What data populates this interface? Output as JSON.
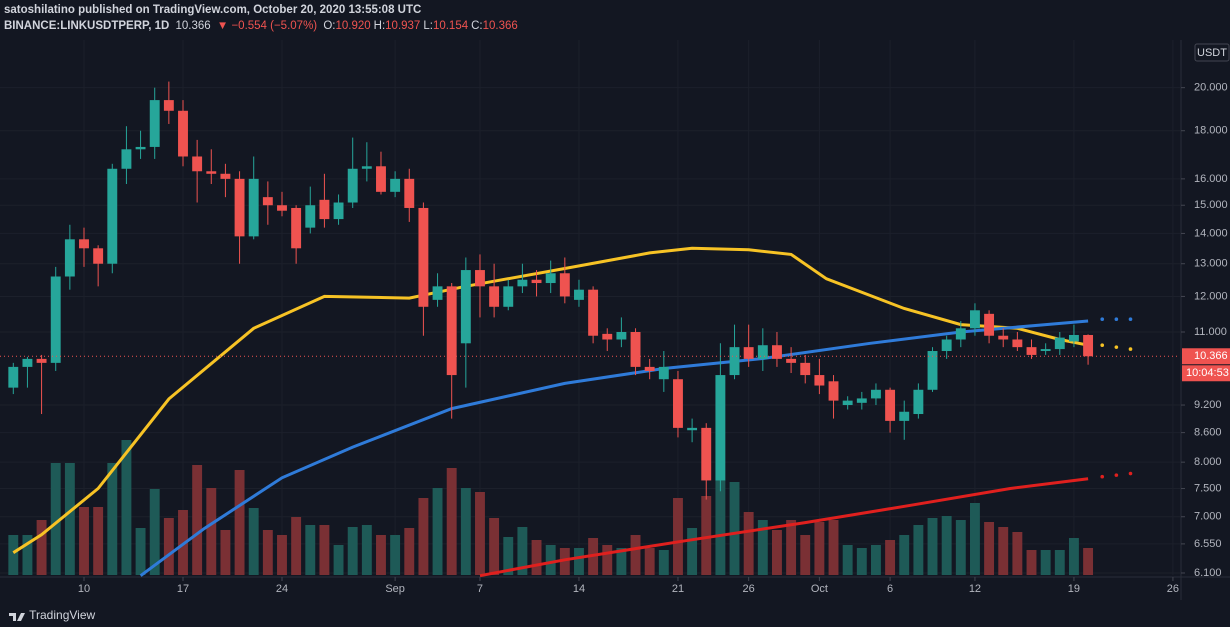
{
  "header": {
    "publisher": "satoshilatino published on TradingView.com, October 20, 2020 13:55:08 UTC",
    "symbol": "BINANCE:LINKUSDTPERP, 1D",
    "price": "10.366",
    "change": "▼ −0.554 (−5.07%)",
    "ohlc": [
      {
        "label": "O:",
        "value": "10.920"
      },
      {
        "label": "H:",
        "value": "10.937"
      },
      {
        "label": "L:",
        "value": "10.154"
      },
      {
        "label": "C:",
        "value": "10.366"
      }
    ]
  },
  "footer": {
    "logo": "TradingView"
  },
  "chart_data": {
    "type": "candlestick",
    "currency": "USDT",
    "countdown": "10:04:53",
    "last_price": 10.366,
    "log_scale": true,
    "grid": true,
    "up_color": "#26a69a",
    "down_color": "#ef5350",
    "volume_up_color": "#1e5a57",
    "volume_down_color": "#7a3034",
    "x": [
      5,
      6,
      7,
      8,
      9,
      10,
      11,
      12,
      13,
      14,
      15,
      16,
      17,
      18,
      19,
      20,
      21,
      22,
      23,
      24,
      25,
      26,
      27,
      28,
      29,
      30,
      31,
      32,
      33,
      34,
      35,
      36,
      37,
      38,
      39,
      40,
      41,
      42,
      43,
      44,
      45,
      46,
      47,
      48,
      49,
      50,
      51,
      52,
      53,
      54,
      55,
      56,
      57,
      58,
      59,
      60,
      61,
      62,
      63,
      64,
      65,
      66,
      67,
      68,
      69,
      70,
      71,
      72,
      73,
      74,
      75,
      76,
      77,
      78,
      79,
      80,
      81
    ],
    "open": [
      9.6,
      10.1,
      10.3,
      10.2,
      12.6,
      13.8,
      13.5,
      13.0,
      16.4,
      17.2,
      17.3,
      19.4,
      18.9,
      16.9,
      16.3,
      16.2,
      16.0,
      13.9,
      15.3,
      15.0,
      14.9,
      14.2,
      15.2,
      14.5,
      15.1,
      16.4,
      16.5,
      15.5,
      16.0,
      14.9,
      11.9,
      12.3,
      10.7,
      12.8,
      12.3,
      11.7,
      12.3,
      12.5,
      12.4,
      12.7,
      11.9,
      12.2,
      10.95,
      10.8,
      11.0,
      10.1,
      9.8,
      9.8,
      8.65,
      8.7,
      7.65,
      9.9,
      10.6,
      10.3,
      10.65,
      10.3,
      10.2,
      9.9,
      9.75,
      9.2,
      9.25,
      9.35,
      9.55,
      8.85,
      9.0,
      9.55,
      10.5,
      10.8,
      11.1,
      11.5,
      10.9,
      10.8,
      10.6,
      10.5,
      10.55,
      10.75,
      10.92
    ],
    "high": [
      10.2,
      10.35,
      10.4,
      12.9,
      14.3,
      14.2,
      13.6,
      16.6,
      18.2,
      18.0,
      20.0,
      20.3,
      19.4,
      17.6,
      17.2,
      16.6,
      16.3,
      16.9,
      15.9,
      15.5,
      15.0,
      15.7,
      16.2,
      15.4,
      17.7,
      17.5,
      17.1,
      16.3,
      16.4,
      15.1,
      12.7,
      12.4,
      13.2,
      13.3,
      13.0,
      12.5,
      13.0,
      12.8,
      13.1,
      13.2,
      12.5,
      12.3,
      11.1,
      11.4,
      11.1,
      10.3,
      10.5,
      10.0,
      8.9,
      8.8,
      10.7,
      11.2,
      11.2,
      11.1,
      11.0,
      10.6,
      10.4,
      10.3,
      9.9,
      9.4,
      9.5,
      9.7,
      9.6,
      9.3,
      9.7,
      10.6,
      10.9,
      11.3,
      11.8,
      11.6,
      11.1,
      11.0,
      10.8,
      10.7,
      11.0,
      11.2,
      10.937
    ],
    "low": [
      9.45,
      9.6,
      9.0,
      10.0,
      12.2,
      12.9,
      12.3,
      12.7,
      15.8,
      16.8,
      16.8,
      18.3,
      16.5,
      15.1,
      15.8,
      15.3,
      13.0,
      13.8,
      14.3,
      14.6,
      13.0,
      14.0,
      14.2,
      14.3,
      14.9,
      15.9,
      15.4,
      15.3,
      14.4,
      10.9,
      11.7,
      8.9,
      9.6,
      11.4,
      11.4,
      11.6,
      12.1,
      12.0,
      12.1,
      11.8,
      11.7,
      10.7,
      10.5,
      10.6,
      9.9,
      9.8,
      9.5,
      8.5,
      8.4,
      7.3,
      7.45,
      9.8,
      10.1,
      10.0,
      10.1,
      9.95,
      9.7,
      9.45,
      8.9,
      9.1,
      9.1,
      9.2,
      8.6,
      8.45,
      8.9,
      9.5,
      10.3,
      10.6,
      10.9,
      10.7,
      10.6,
      10.5,
      10.3,
      10.4,
      10.4,
      10.6,
      10.154
    ],
    "close": [
      10.1,
      10.3,
      10.2,
      12.6,
      13.8,
      13.5,
      13.0,
      16.4,
      17.2,
      17.3,
      19.4,
      18.9,
      16.9,
      16.3,
      16.2,
      16.0,
      13.9,
      16.0,
      15.0,
      14.8,
      13.5,
      15.0,
      14.5,
      15.1,
      16.4,
      16.5,
      15.5,
      16.0,
      14.9,
      11.7,
      12.3,
      9.9,
      12.8,
      12.3,
      11.7,
      12.3,
      12.5,
      12.4,
      12.7,
      12.0,
      12.2,
      10.9,
      10.8,
      11.0,
      10.1,
      10.0,
      10.1,
      8.7,
      8.7,
      7.65,
      9.9,
      10.6,
      10.3,
      10.65,
      10.3,
      10.2,
      9.9,
      9.65,
      9.3,
      9.3,
      9.35,
      9.55,
      8.85,
      9.05,
      9.55,
      10.5,
      10.8,
      11.1,
      11.6,
      10.9,
      10.8,
      10.6,
      10.4,
      10.55,
      10.85,
      10.92,
      10.366
    ],
    "volume": [
      40,
      40,
      55,
      112,
      112,
      68,
      68,
      112,
      135,
      47,
      86,
      57,
      65,
      110,
      87,
      45,
      105,
      67,
      45,
      40,
      58,
      50,
      50,
      30,
      48,
      50,
      40,
      40,
      47,
      77,
      87,
      107,
      87,
      83,
      57,
      38,
      48,
      35,
      30,
      27,
      27,
      37,
      30,
      27,
      40,
      27,
      25,
      77,
      47,
      79,
      95,
      93,
      63,
      55,
      45,
      55,
      40,
      53,
      55,
      30,
      27,
      30,
      35,
      40,
      50,
      57,
      59,
      55,
      72,
      53,
      48,
      43,
      25,
      25,
      25,
      37,
      27
    ],
    "moving_averages": [
      {
        "color": "#f7c325",
        "x": [
          5,
          7,
          11,
          16,
          22,
          27,
          33,
          37,
          44,
          50,
          53,
          57,
          60,
          62.5,
          68,
          72,
          76,
          79,
          81
        ],
        "values": [
          6.41,
          6.7,
          7.5,
          9.34,
          11.1,
          12.0,
          11.95,
          12.3,
          12.85,
          13.35,
          13.5,
          13.45,
          13.3,
          12.53,
          11.65,
          11.2,
          11.1,
          10.8,
          10.65
        ],
        "projection_x": [
          82,
          83,
          84
        ],
        "projection_values": [
          10.65,
          10.6,
          10.55
        ]
      },
      {
        "color": "#2f7bd9",
        "x": [
          14,
          18.5,
          24,
          29,
          36,
          44,
          51,
          58,
          65.6,
          72,
          78,
          81
        ],
        "values": [
          6.06,
          6.8,
          7.7,
          8.3,
          9.12,
          9.7,
          10.06,
          10.31,
          10.7,
          11.0,
          11.2,
          11.3
        ],
        "projection_x": [
          82,
          83,
          84
        ],
        "projection_values": [
          11.35,
          11.35,
          11.35
        ]
      },
      {
        "color": "#e0201e",
        "x": [
          38,
          44,
          52.5,
          61,
          68.5,
          75.5,
          81
        ],
        "values": [
          6.06,
          6.3,
          6.6,
          6.9,
          7.2,
          7.5,
          7.68
        ],
        "projection_x": [
          82,
          83,
          84
        ],
        "projection_values": [
          7.72,
          7.75,
          7.78
        ]
      }
    ],
    "xlim": [
      4.06,
      87.5
    ],
    "xticks": [
      10,
      17,
      24,
      {
        "value": 32,
        "label": "Sep"
      },
      {
        "value": 38,
        "label": "7"
      },
      {
        "value": 45,
        "label": "14"
      },
      {
        "value": 52,
        "label": "21"
      },
      {
        "value": 57,
        "label": "26"
      },
      {
        "value": 62,
        "label": "Oct"
      },
      {
        "value": 67,
        "label": "6"
      },
      {
        "value": 73,
        "label": "12"
      },
      {
        "value": 80,
        "label": "19"
      },
      {
        "value": 87,
        "label": "26"
      }
    ],
    "ylim": [
      6.07,
      22.2
    ],
    "yticks": [
      {
        "value": 20,
        "label": "20.000"
      },
      {
        "value": 18,
        "label": "18.000"
      },
      {
        "value": 16,
        "label": "16.000"
      },
      {
        "value": 15,
        "label": "15.000"
      },
      {
        "value": 14,
        "label": "14.000"
      },
      {
        "value": 13,
        "label": "13.000"
      },
      {
        "value": 12,
        "label": "12.000"
      },
      {
        "value": 11,
        "label": "11.000"
      },
      {
        "value": 9.2,
        "label": "9.200"
      },
      {
        "value": 8.6,
        "label": "8.600"
      },
      {
        "value": 8,
        "label": "8.000"
      },
      {
        "value": 7.5,
        "label": "7.500"
      },
      {
        "value": 7,
        "label": "7.000"
      },
      {
        "value": 6.55,
        "label": "6.550"
      },
      {
        "value": 6.1,
        "label": "6.100"
      }
    ]
  }
}
